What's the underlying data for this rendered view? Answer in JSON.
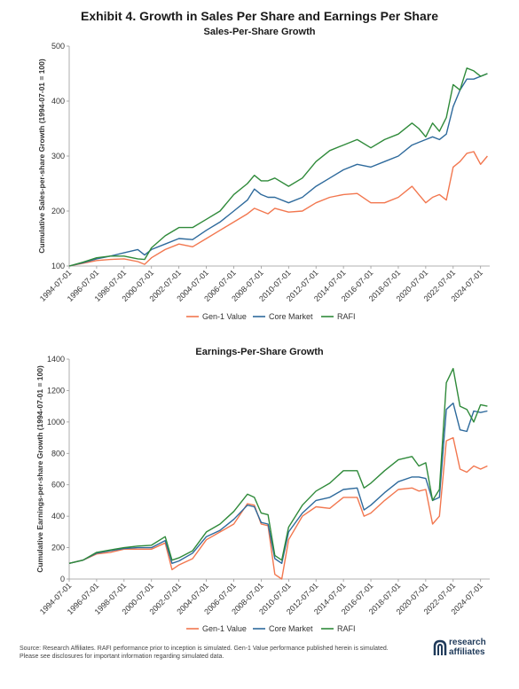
{
  "header": {
    "title": "Exhibit 4. Growth in Sales Per Share and Earnings Per Share"
  },
  "footer": {
    "source": "Source: Research Affiliates. RAFI performance prior to inception is simulated. Gen-1 Value performance published herein is simulated. Please see disclosures for important information regarding simulated data.",
    "logo_line1": "research",
    "logo_line2": "affiliates"
  },
  "colors": {
    "gen1": "#f2774f",
    "core": "#2e6a9c",
    "rafi": "#2f8a3a"
  },
  "chart_data": [
    {
      "type": "line",
      "title": "Sales-Per-Share Growth",
      "ylabel": "Cumulative Sales-per-share Growth (1994-07-01 = 100)",
      "xlabel": "",
      "ylim": [
        100,
        500
      ],
      "yticks": [
        100,
        200,
        300,
        400,
        500
      ],
      "xlim": [
        "1994-07-01",
        "2025-03-01"
      ],
      "xticks": [
        "1994-07-01",
        "1996-07-01",
        "1998-07-01",
        "2000-07-01",
        "2002-07-01",
        "2004-07-01",
        "2006-07-01",
        "2008-07-01",
        "2010-07-01",
        "2012-07-01",
        "2014-07-01",
        "2016-07-01",
        "2018-07-01",
        "2020-07-01",
        "2022-07-01",
        "2024-07-01"
      ],
      "grid": false,
      "legend": "bottom",
      "x": [
        1994.5,
        1995.5,
        1996.5,
        1997.5,
        1998.5,
        1999.5,
        2000.0,
        2000.5,
        2001.5,
        2002.5,
        2003.5,
        2004.5,
        2005.5,
        2006.5,
        2007.5,
        2008.0,
        2008.5,
        2009.0,
        2009.5,
        2010.5,
        2011.5,
        2012.5,
        2013.5,
        2014.5,
        2015.5,
        2016.5,
        2017.5,
        2018.5,
        2019.5,
        2020.0,
        2020.5,
        2021.0,
        2021.5,
        2022.0,
        2022.5,
        2023.0,
        2023.5,
        2024.0,
        2024.5,
        2025.0
      ],
      "series": [
        {
          "name": "Gen-1 Value",
          "color_key": "gen1",
          "values": [
            100,
            105,
            110,
            112,
            113,
            108,
            103,
            115,
            130,
            140,
            135,
            150,
            165,
            180,
            195,
            205,
            200,
            195,
            205,
            198,
            200,
            215,
            225,
            230,
            232,
            215,
            215,
            225,
            245,
            230,
            215,
            225,
            230,
            220,
            280,
            290,
            305,
            308,
            285,
            300
          ]
        },
        {
          "name": "Core Market",
          "color_key": "core",
          "values": [
            100,
            106,
            113,
            118,
            124,
            130,
            120,
            130,
            140,
            150,
            148,
            165,
            180,
            200,
            220,
            240,
            230,
            225,
            225,
            215,
            225,
            245,
            260,
            275,
            285,
            280,
            290,
            300,
            320,
            325,
            330,
            335,
            330,
            340,
            390,
            420,
            440,
            440,
            445,
            450
          ]
        },
        {
          "name": "RAFI",
          "color_key": "rafi",
          "values": [
            100,
            107,
            115,
            118,
            118,
            113,
            112,
            133,
            155,
            170,
            170,
            185,
            200,
            230,
            250,
            265,
            255,
            255,
            260,
            245,
            260,
            290,
            310,
            320,
            330,
            315,
            330,
            340,
            360,
            350,
            335,
            360,
            345,
            370,
            430,
            420,
            460,
            455,
            445,
            450
          ]
        }
      ]
    },
    {
      "type": "line",
      "title": "Earnings-Per-Share Growth",
      "ylabel": "Cumulative Earnings-per-share Growth (1994-07-01 = 100)",
      "xlabel": "",
      "ylim": [
        0,
        1400
      ],
      "yticks": [
        0,
        200,
        400,
        600,
        800,
        1000,
        1200,
        1400
      ],
      "xlim": [
        "1994-07-01",
        "2025-03-01"
      ],
      "xticks": [
        "1994-07-01",
        "1996-07-01",
        "1998-07-01",
        "2000-07-01",
        "2002-07-01",
        "2004-07-01",
        "2006-07-01",
        "2008-07-01",
        "2010-07-01",
        "2012-07-01",
        "2014-07-01",
        "2016-07-01",
        "2018-07-01",
        "2020-07-01",
        "2022-07-01",
        "2024-07-01"
      ],
      "grid": false,
      "legend": "bottom",
      "x": [
        1994.5,
        1995.5,
        1996.5,
        1997.5,
        1998.5,
        1999.5,
        2000.5,
        2001.5,
        2002.0,
        2002.5,
        2003.5,
        2004.5,
        2005.5,
        2006.5,
        2007.5,
        2008.0,
        2008.5,
        2009.0,
        2009.5,
        2010.0,
        2010.5,
        2011.5,
        2012.5,
        2013.5,
        2014.5,
        2015.5,
        2016.0,
        2016.5,
        2017.5,
        2018.5,
        2019.5,
        2020.0,
        2020.5,
        2021.0,
        2021.5,
        2022.0,
        2022.5,
        2023.0,
        2023.5,
        2024.0,
        2024.5,
        2025.0
      ],
      "series": [
        {
          "name": "Gen-1 Value",
          "color_key": "gen1",
          "values": [
            100,
            120,
            160,
            170,
            190,
            190,
            190,
            230,
            60,
            90,
            130,
            250,
            300,
            350,
            480,
            470,
            350,
            340,
            30,
            0,
            250,
            400,
            460,
            450,
            520,
            520,
            400,
            420,
            500,
            570,
            580,
            560,
            570,
            350,
            400,
            880,
            900,
            700,
            680,
            720,
            700,
            720
          ]
        },
        {
          "name": "Core Market",
          "color_key": "core",
          "values": [
            100,
            120,
            165,
            180,
            195,
            200,
            200,
            245,
            100,
            115,
            165,
            270,
            310,
            380,
            470,
            460,
            360,
            350,
            130,
            100,
            300,
            420,
            500,
            520,
            570,
            580,
            440,
            470,
            550,
            620,
            650,
            650,
            640,
            500,
            520,
            1080,
            1120,
            950,
            940,
            1070,
            1060,
            1070
          ]
        },
        {
          "name": "RAFI",
          "color_key": "rafi",
          "values": [
            100,
            120,
            170,
            185,
            200,
            210,
            215,
            270,
            120,
            135,
            180,
            300,
            350,
            430,
            540,
            520,
            420,
            410,
            150,
            120,
            330,
            470,
            560,
            610,
            690,
            690,
            580,
            610,
            690,
            760,
            780,
            720,
            740,
            500,
            570,
            1250,
            1340,
            1100,
            1080,
            1000,
            1110,
            1100
          ]
        }
      ]
    }
  ]
}
